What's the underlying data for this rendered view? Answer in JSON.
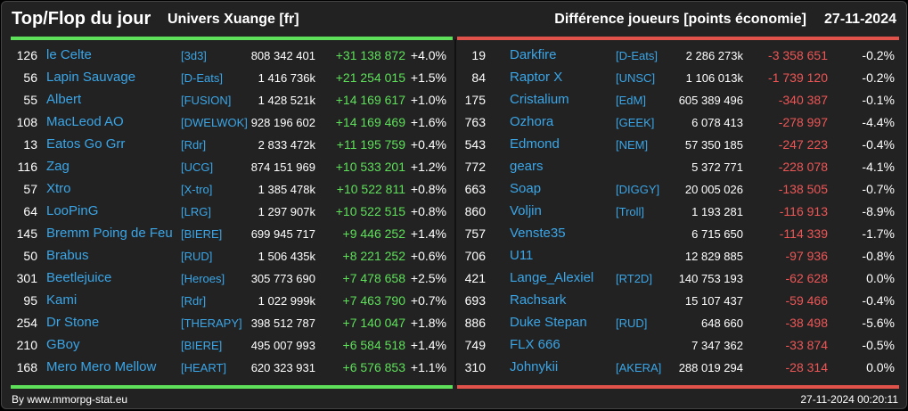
{
  "header": {
    "title": "Top/Flop du jour",
    "universe": "Univers Xuange [fr]",
    "metric": "Différence joueurs [points économie]",
    "date": "27-11-2024"
  },
  "colors": {
    "top_accent": "#5ee05a",
    "flop_accent": "#e0524a",
    "name_link": "#3aa6e8",
    "background": "#222222"
  },
  "top": [
    {
      "rank": "126",
      "name": "le Celte",
      "tag": "[3d3]",
      "total": "808 342 401",
      "diff": "+31 138 872",
      "pct": "+4.0%"
    },
    {
      "rank": "56",
      "name": "Lapin Sauvage",
      "tag": "[D-Eats]",
      "total": "1 416 736k",
      "diff": "+21 254 015",
      "pct": "+1.5%"
    },
    {
      "rank": "55",
      "name": "Albert",
      "tag": "[FUSION]",
      "total": "1 428 521k",
      "diff": "+14 169 617",
      "pct": "+1.0%"
    },
    {
      "rank": "108",
      "name": "MacLeod AO",
      "tag": "[DWELWOK]",
      "total": "928 196 602",
      "diff": "+14 169 469",
      "pct": "+1.6%"
    },
    {
      "rank": "13",
      "name": "Eatos Go Grr",
      "tag": "[Rdr]",
      "total": "2 833 472k",
      "diff": "+11 195 759",
      "pct": "+0.4%"
    },
    {
      "rank": "116",
      "name": "Zag",
      "tag": "[UCG]",
      "total": "874 151 969",
      "diff": "+10 533 201",
      "pct": "+1.2%"
    },
    {
      "rank": "57",
      "name": "Xtro",
      "tag": "[X-tro]",
      "total": "1 385 478k",
      "diff": "+10 522 811",
      "pct": "+0.8%"
    },
    {
      "rank": "64",
      "name": "LooPinG",
      "tag": "[LRG]",
      "total": "1 297 907k",
      "diff": "+10 522 515",
      "pct": "+0.8%"
    },
    {
      "rank": "145",
      "name": "Bremm Poing de Feu",
      "tag": "[BIERE]",
      "total": "699 945 717",
      "diff": "+9 446 252",
      "pct": "+1.4%"
    },
    {
      "rank": "50",
      "name": "Brabus",
      "tag": "[RUD]",
      "total": "1 506 435k",
      "diff": "+8 221 252",
      "pct": "+0.6%"
    },
    {
      "rank": "301",
      "name": "Beetlejuice",
      "tag": "[Heroes]",
      "total": "305 773 690",
      "diff": "+7 478 658",
      "pct": "+2.5%"
    },
    {
      "rank": "95",
      "name": "Kami",
      "tag": "[Rdr]",
      "total": "1 022 999k",
      "diff": "+7 463 790",
      "pct": "+0.7%"
    },
    {
      "rank": "254",
      "name": "Dr Stone",
      "tag": "[THERAPY]",
      "total": "398 512 787",
      "diff": "+7 140 047",
      "pct": "+1.8%"
    },
    {
      "rank": "210",
      "name": "GBoy",
      "tag": "[BIERE]",
      "total": "495 007 993",
      "diff": "+6 584 518",
      "pct": "+1.4%"
    },
    {
      "rank": "168",
      "name": "Mero Mero Mellow",
      "tag": "[HEART]",
      "total": "620 323 931",
      "diff": "+6 576 853",
      "pct": "+1.1%"
    }
  ],
  "flop": [
    {
      "rank": "19",
      "name": "Darkfire",
      "tag": "[D-Eats]",
      "total": "2 286 273k",
      "diff": "-3 358 651",
      "pct": "-0.2%"
    },
    {
      "rank": "84",
      "name": "Raptor X",
      "tag": "[UNSC]",
      "total": "1 106 013k",
      "diff": "-1 739 120",
      "pct": "-0.2%"
    },
    {
      "rank": "175",
      "name": "Cristalium",
      "tag": "[EdM]",
      "total": "605 389 496",
      "diff": "-340 387",
      "pct": "-0.1%"
    },
    {
      "rank": "763",
      "name": "Ozhora",
      "tag": "[GEEK]",
      "total": "6 078 413",
      "diff": "-278 997",
      "pct": "-4.4%"
    },
    {
      "rank": "543",
      "name": "Edmond",
      "tag": "[NEM]",
      "total": "57 350 185",
      "diff": "-247 223",
      "pct": "-0.4%"
    },
    {
      "rank": "772",
      "name": "gears",
      "tag": "",
      "total": "5 372 771",
      "diff": "-228 078",
      "pct": "-4.1%"
    },
    {
      "rank": "663",
      "name": "Soap",
      "tag": "[DIGGY]",
      "total": "20 005 026",
      "diff": "-138 505",
      "pct": "-0.7%"
    },
    {
      "rank": "860",
      "name": "Voljin",
      "tag": "[Troll]",
      "total": "1 193 281",
      "diff": "-116 913",
      "pct": "-8.9%"
    },
    {
      "rank": "757",
      "name": "Venste35",
      "tag": "",
      "total": "6 715 650",
      "diff": "-114 339",
      "pct": "-1.7%"
    },
    {
      "rank": "706",
      "name": "U11",
      "tag": "",
      "total": "12 829 885",
      "diff": "-97 936",
      "pct": "-0.8%"
    },
    {
      "rank": "421",
      "name": "Lange_Alexiel",
      "tag": "[RT2D]",
      "total": "140 753 193",
      "diff": "-62 628",
      "pct": "0.0%"
    },
    {
      "rank": "693",
      "name": "Rachsark",
      "tag": "",
      "total": "15 107 437",
      "diff": "-59 466",
      "pct": "-0.4%"
    },
    {
      "rank": "886",
      "name": "Duke Stepan",
      "tag": "[RUD]",
      "total": "648 660",
      "diff": "-38 498",
      "pct": "-5.6%"
    },
    {
      "rank": "749",
      "name": "FLX 666",
      "tag": "",
      "total": "7 347 362",
      "diff": "-33 874",
      "pct": "-0.5%"
    },
    {
      "rank": "310",
      "name": "Johnykii",
      "tag": "[AKERA]",
      "total": "288 019 294",
      "diff": "-28 314",
      "pct": "0.0%"
    }
  ],
  "footer": {
    "credit": "By www.mmorpg-stat.eu",
    "timestamp": "27-11-2024 00:20:11"
  }
}
